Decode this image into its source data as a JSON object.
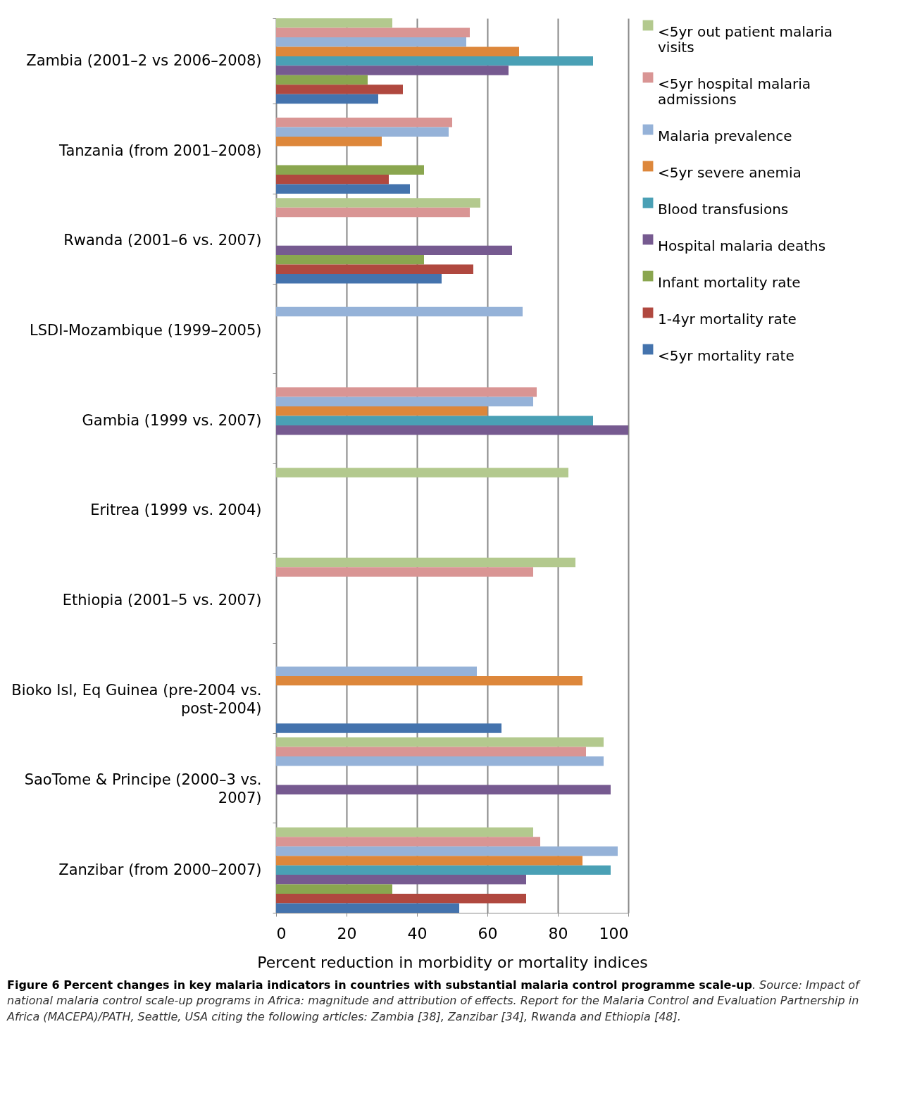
{
  "chart_data": {
    "type": "bar",
    "orientation": "horizontal",
    "categories": [
      "Zambia (2001–2 vs 2006–2008)",
      "Tanzania (from 2001–2008)",
      "Rwanda (2001–6 vs. 2007)",
      "LSDI-Mozambique (1999–2005)",
      "Gambia (1999 vs. 2007)",
      "Eritrea (1999 vs. 2004)",
      "Ethiopia (2001–5 vs. 2007)",
      "Bioko Isl, Eq Guinea (pre-2004 vs. post-2004)",
      "SaoTome & Principe (2000–3 vs. 2007)",
      "Zanzibar (from 2000–2007)"
    ],
    "series": [
      {
        "name": "<5yr out patient malaria visits",
        "color": "#b3c98e",
        "values": [
          33,
          null,
          58,
          null,
          null,
          83,
          85,
          null,
          93,
          73
        ]
      },
      {
        "name": "<5yr hospital malaria admissions",
        "color": "#d99594",
        "values": [
          55,
          50,
          55,
          null,
          74,
          null,
          73,
          null,
          88,
          75
        ]
      },
      {
        "name": "Malaria prevalence",
        "color": "#95b2d8",
        "values": [
          54,
          49,
          null,
          70,
          73,
          null,
          null,
          57,
          93,
          97
        ]
      },
      {
        "name": "<5yr severe anemia",
        "color": "#dd873b",
        "values": [
          69,
          30,
          null,
          null,
          60,
          null,
          null,
          87,
          null,
          87
        ]
      },
      {
        "name": "Blood transfusions",
        "color": "#4aa0b5",
        "values": [
          90,
          null,
          null,
          null,
          90,
          null,
          null,
          null,
          null,
          95
        ]
      },
      {
        "name": "Hospital malaria deaths",
        "color": "#765a90",
        "values": [
          66,
          null,
          67,
          null,
          100,
          null,
          null,
          null,
          95,
          71
        ]
      },
      {
        "name": "Infant mortality rate",
        "color": "#8aa64f",
        "values": [
          26,
          42,
          42,
          null,
          null,
          null,
          null,
          null,
          null,
          33
        ]
      },
      {
        "name": "1-4yr mortality rate",
        "color": "#b0483f",
        "values": [
          36,
          32,
          56,
          null,
          null,
          null,
          null,
          null,
          null,
          71
        ]
      },
      {
        "name": "<5yr mortality rate",
        "color": "#4473ad",
        "values": [
          29,
          38,
          47,
          null,
          null,
          null,
          null,
          64,
          null,
          52
        ]
      }
    ],
    "xlim": [
      0,
      100
    ],
    "xticks": [
      0,
      20,
      40,
      60,
      80,
      100
    ],
    "xlabel": "Percent reduction in morbidity or mortality indices",
    "grid": "x",
    "legend": "right",
    "annotations": [
      "Figure 6 Percent changes in key malaria indicators in countries with substantial malaria control programme scale-up",
      ". Source: Impact of national malaria control scale-up programs in Africa: magnitude and attribution of effects. Report for the Malaria Control and Evaluation Partnership in Africa (MACEPA)/PATH, Seattle, USA citing the following articles: Zambia [38], Zanzibar [34], Rwanda and Ethiopia [48]."
    ]
  }
}
